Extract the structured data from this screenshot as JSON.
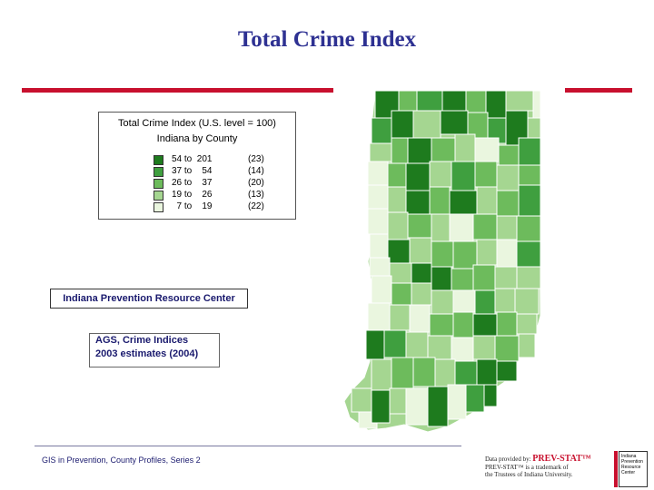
{
  "slide": {
    "title": "Total Crime Index"
  },
  "legend": {
    "title": "Total Crime Index (U.S. level = 100)",
    "subtitle": "Indiana by County",
    "classes": [
      {
        "range": "54 to  201",
        "count": "(23)",
        "color": "#1e7b1e"
      },
      {
        "range": "37 to    54",
        "count": "(14)",
        "color": "#3f9f3f"
      },
      {
        "range": "26 to    37",
        "count": "(20)",
        "color": "#6dbb5c"
      },
      {
        "range": "19 to    26",
        "count": "(13)",
        "color": "#a5d691"
      },
      {
        "range": "  7 to    19",
        "count": "(22)",
        "color": "#eaf6df"
      }
    ]
  },
  "org_label": "Indiana Prevention Resource Center",
  "source": {
    "line1": "AGS, Crime Indices",
    "line2": "2003 estimates (2004)"
  },
  "footer": {
    "text": "GIS in Prevention, County Profiles, Series 2"
  },
  "provider": {
    "prefix": "Data provided by: ",
    "brand": "PREV-STAT™",
    "line2": "PREV-STAT™ is a trademark of",
    "line3": "the Trustees of Indiana University."
  },
  "logo_text": "Indiana Prevention Resource Center",
  "colors": {
    "title": "#2e3192",
    "rule": "#c8102e",
    "class1": "#1e7b1e",
    "class2": "#3f9f3f",
    "class3": "#6dbb5c",
    "class4": "#a5d691",
    "class5": "#eaf6df"
  }
}
